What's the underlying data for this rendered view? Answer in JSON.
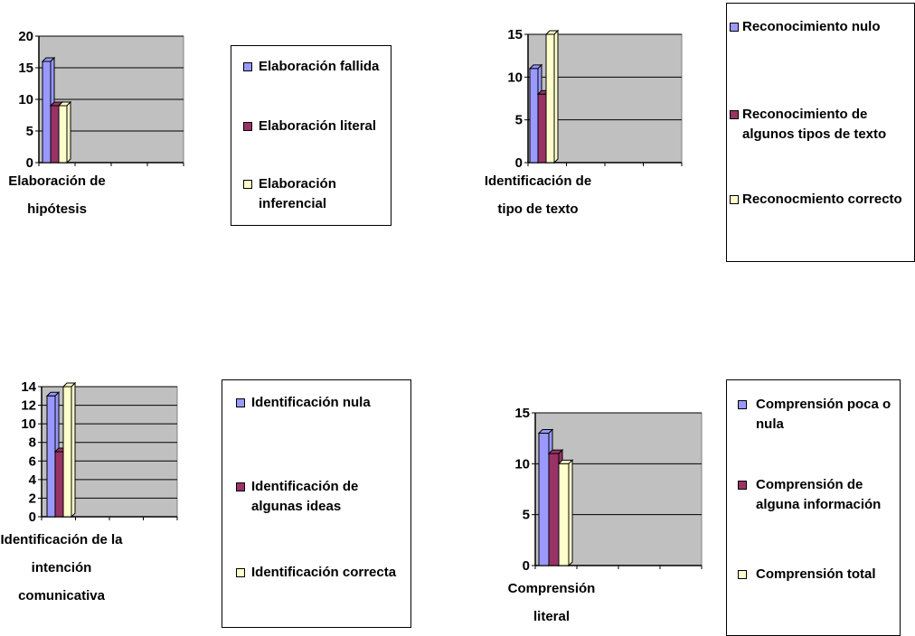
{
  "chart_data": [
    {
      "type": "bar",
      "categories": [
        "Elaboración de hipótesis"
      ],
      "series": [
        {
          "name": "Elaboración fallida",
          "values": [
            16
          ],
          "color": "#9999ff"
        },
        {
          "name": "Elaboración literal",
          "values": [
            9
          ],
          "color": "#993366"
        },
        {
          "name": "Elaboración inferencial",
          "values": [
            9
          ],
          "color": "#ffffcc"
        }
      ],
      "ylim": [
        0,
        20
      ],
      "yticks": [
        "0",
        "5",
        "10",
        "15",
        "20"
      ],
      "grid": true,
      "plot_background": "#c0c0c0",
      "legend_position": "right"
    },
    {
      "type": "bar",
      "categories": [
        "Identificación de tipo de texto"
      ],
      "series": [
        {
          "name": "Reconocimiento nulo",
          "values": [
            11
          ],
          "color": "#9999ff"
        },
        {
          "name": "Reconocimiento de algunos tipos de texto",
          "values": [
            8
          ],
          "color": "#993366"
        },
        {
          "name": "Reconocmiento correcto",
          "values": [
            15
          ],
          "color": "#ffffcc"
        }
      ],
      "ylim": [
        0,
        15
      ],
      "yticks": [
        "0",
        "5",
        "10",
        "15"
      ],
      "grid": true,
      "plot_background": "#c0c0c0",
      "legend_position": "right"
    },
    {
      "type": "bar",
      "categories": [
        "Identificación de la intención comunicativa"
      ],
      "series": [
        {
          "name": "Identificación nula",
          "values": [
            13
          ],
          "color": "#9999ff"
        },
        {
          "name": "Identificación de algunas ideas",
          "values": [
            7
          ],
          "color": "#993366"
        },
        {
          "name": "Identificación correcta",
          "values": [
            14
          ],
          "color": "#ffffcc"
        }
      ],
      "ylim": [
        0,
        14
      ],
      "yticks": [
        "0",
        "2",
        "4",
        "6",
        "8",
        "10",
        "12",
        "14"
      ],
      "grid": true,
      "plot_background": "#c0c0c0",
      "legend_position": "right"
    },
    {
      "type": "bar",
      "categories": [
        "Comprensión literal"
      ],
      "series": [
        {
          "name": "Comprensión poca o nula",
          "values": [
            13
          ],
          "color": "#9999ff"
        },
        {
          "name": "Comprensión de alguna información",
          "values": [
            11
          ],
          "color": "#993366"
        },
        {
          "name": "Comprensión total",
          "values": [
            10
          ],
          "color": "#ffffcc"
        }
      ],
      "ylim": [
        0,
        15
      ],
      "yticks": [
        "0",
        "5",
        "10",
        "15"
      ],
      "grid": true,
      "plot_background": "#c0c0c0",
      "legend_position": "right"
    }
  ]
}
